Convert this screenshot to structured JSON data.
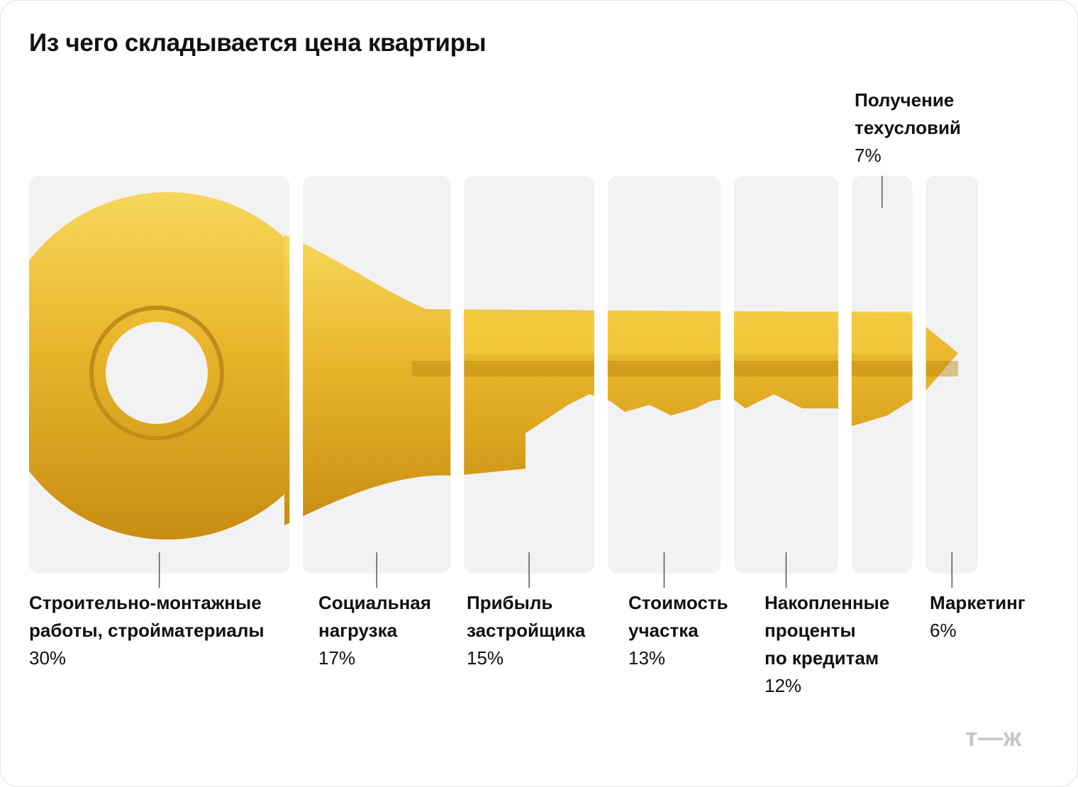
{
  "chart_data": {
    "type": "proportion",
    "title": "Из чего складывается цена квартиры",
    "categories": [
      "Строительно-монтажные\nработы, стройматериалы",
      "Социальная\nнагрузка",
      "Прибыль\nзастройщика",
      "Стоимость\nучастка",
      "Накопленные\nпроценты\nпо кредитам",
      "Получение\nтехусловий",
      "Маркетинг"
    ],
    "values": [
      30,
      17,
      15,
      13,
      12,
      7,
      6
    ],
    "value_labels": [
      "30%",
      "17%",
      "15%",
      "13%",
      "12%",
      "7%",
      "6%"
    ],
    "color": "#f2f2f2",
    "logo": "т—ж"
  }
}
